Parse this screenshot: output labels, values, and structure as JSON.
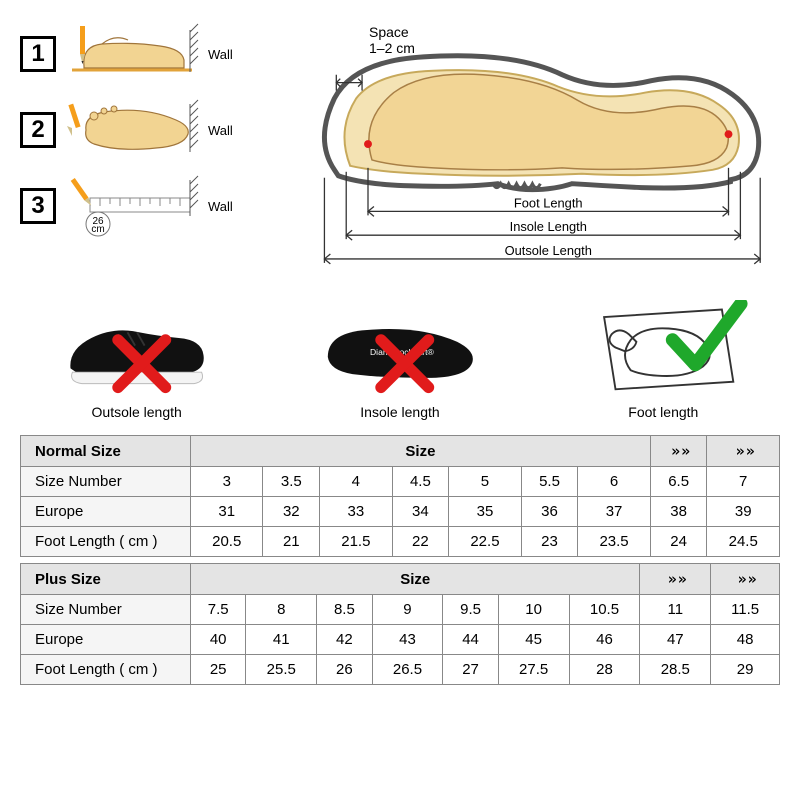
{
  "colors": {
    "foot_fill": "#f2d492",
    "foot_stroke": "#a0753b",
    "pencil_body": "#f59e1b",
    "pencil_tip": "#d0c08b",
    "wall_hatch": "#555",
    "shoe_outline": "#555",
    "shoe_inner": "#f4e3b4",
    "red_x": "#e11b1b",
    "green_check": "#1fa82b",
    "arrow": "#333",
    "table_header_bg": "#e4e4e4",
    "table_row_header_bg": "#f5f5f5",
    "table_border": "#888888"
  },
  "diagram": {
    "space_title": "Space",
    "space_val": "1–2 cm",
    "labels": {
      "foot_length": "Foot Length",
      "insole_length": "Insole Length",
      "outsole_length": "Outsole Length"
    }
  },
  "steps": {
    "s1": {
      "num": "1",
      "wall": "Wall"
    },
    "s2": {
      "num": "2",
      "wall": "Wall"
    },
    "s3": {
      "num": "3",
      "wall": "Wall",
      "ruler_val": "26",
      "ruler_unit": "cm"
    }
  },
  "methods": {
    "m1": {
      "label": "Outsole length"
    },
    "m2": {
      "label": "Insole length",
      "brand": "Diane Lockhart®"
    },
    "m3": {
      "label": "Foot length"
    }
  },
  "chev_left": "» »",
  "chev_right": "» »",
  "table_normal": {
    "section_title": "Normal  Size",
    "section_center": "Size",
    "rows": [
      {
        "header": "Size Number",
        "cells": [
          "3",
          "3.5",
          "4",
          "4.5",
          "5",
          "5.5",
          "6",
          "6.5",
          "7"
        ]
      },
      {
        "header": "Europe",
        "cells": [
          "31",
          "32",
          "33",
          "34",
          "35",
          "36",
          "37",
          "38",
          "39"
        ]
      },
      {
        "header": "Foot Length ( cm )",
        "cells": [
          "20.5",
          "21",
          "21.5",
          "22",
          "22.5",
          "23",
          "23.5",
          "24",
          "24.5"
        ]
      }
    ]
  },
  "table_plus": {
    "section_title": "Plus   Size",
    "section_center": "Size",
    "rows": [
      {
        "header": "Size Number",
        "cells": [
          "7.5",
          "8",
          "8.5",
          "9",
          "9.5",
          "10",
          "10.5",
          "11",
          "11.5"
        ]
      },
      {
        "header": "Europe",
        "cells": [
          "40",
          "41",
          "42",
          "43",
          "44",
          "45",
          "46",
          "47",
          "48"
        ]
      },
      {
        "header": "Foot Length ( cm )",
        "cells": [
          "25",
          "25.5",
          "26",
          "26.5",
          "27",
          "27.5",
          "28",
          "28.5",
          "29"
        ]
      }
    ]
  }
}
